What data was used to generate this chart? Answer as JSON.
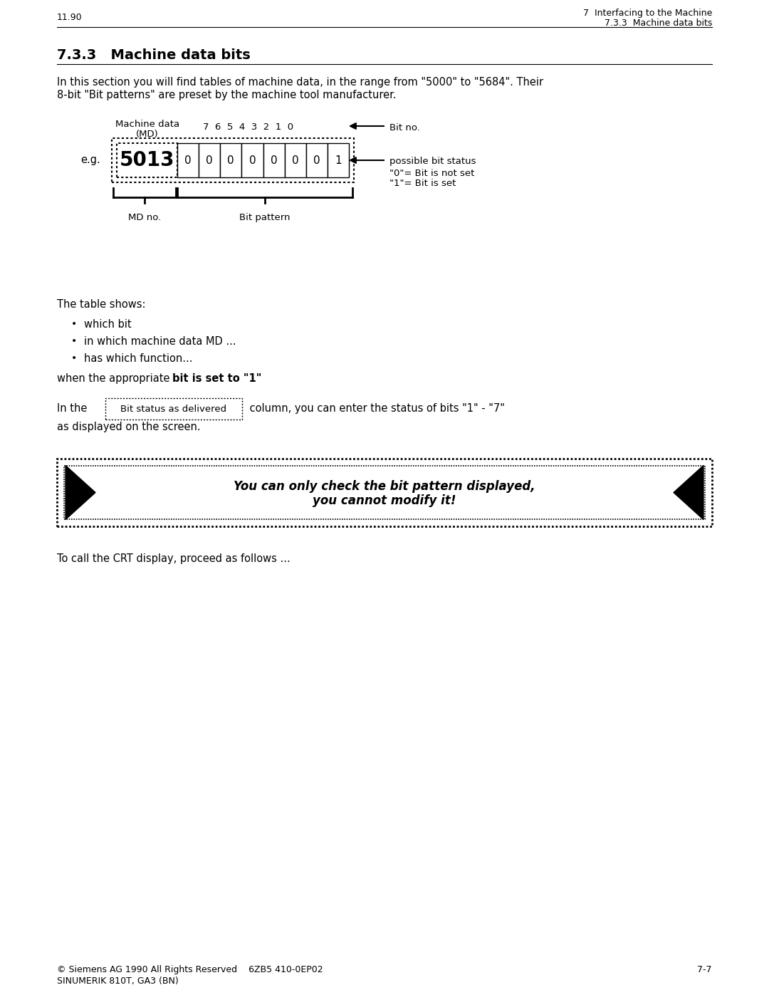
{
  "page_num_left": "11.90",
  "header_right_line1": "7  Interfacing to the Machine",
  "header_right_line2": "7.3.3  Machine data bits",
  "section_title": "7.3.3   Machine data bits",
  "intro_text_line1": "In this section you will find tables of machine data, in the range from \"5000\" to \"5684\". Their",
  "intro_text_line2": "8-bit \"Bit patterns\" are preset by the machine tool manufacturer.",
  "bit_no_label": "Bit no.",
  "eg_label": "e.g.",
  "md_number": "5013",
  "bit_values": [
    "0",
    "0",
    "0",
    "0",
    "0",
    "0",
    "0",
    "1"
  ],
  "possible_bit_status": "possible bit status",
  "zero_means": "\"0\"= Bit is not set",
  "one_means": "\"1\"= Bit is set",
  "md_no_label": "MD no.",
  "bit_pattern_label": "Bit pattern",
  "table_shows": "The table shows:",
  "bullet1": "which bit",
  "bullet2": "in which machine data MD ...",
  "bullet3": "has which function...",
  "when_text_normal": "when the appropriate ",
  "when_text_bold": "bit is set to \"1\"",
  "in_the_text": "In the ",
  "column_label": "Bit status as delivered",
  "column_text": " column, you can enter the status of bits \"1\" - \"7\"",
  "as_displayed": "as displayed on the screen.",
  "warning_line1": "You can only check the bit pattern displayed,",
  "warning_line2": "you cannot modify it!",
  "crt_text": "To call the CRT display, proceed as follows ...",
  "footer_left_line1": "© Siemens AG 1990 All Rights Reserved    6ZB5 410-0EP02",
  "footer_left_line2": "SINUMERIK 810T, GA3 (BN)",
  "footer_right": "7-7",
  "bg_color": "#ffffff",
  "text_color": "#000000"
}
